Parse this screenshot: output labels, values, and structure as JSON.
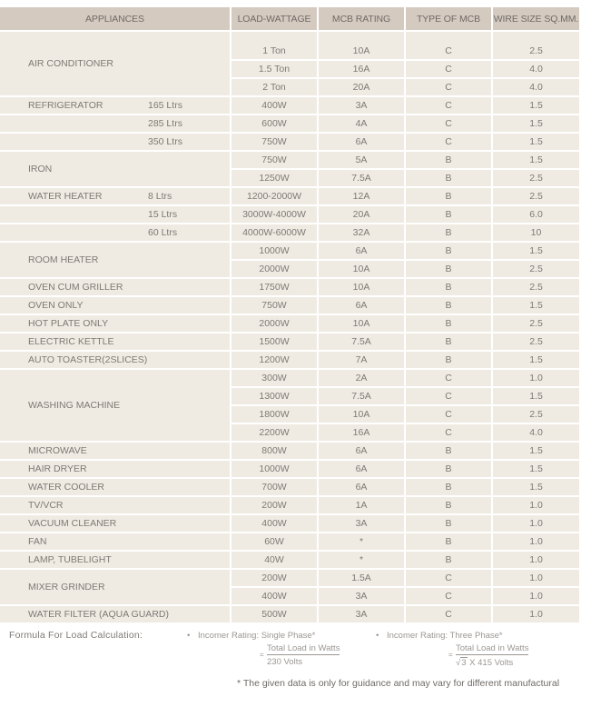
{
  "table": {
    "headers": {
      "appliances": "APPLIANCES",
      "load": "LOAD-WATTAGE",
      "mcb": "MCB RATING",
      "type": "TYPE OF MCB",
      "wire": "WIRE SIZE SQ.MM."
    },
    "rows": [
      {
        "appliance": "AIR CONDITIONER",
        "sub": "",
        "load": "1 Ton",
        "mcb": "10A",
        "type": "C",
        "wire": "2.5"
      },
      {
        "appliance": "",
        "sub": "",
        "load": "1.5 Ton",
        "mcb": "16A",
        "type": "C",
        "wire": "4.0"
      },
      {
        "appliance": "",
        "sub": "",
        "load": "2 Ton",
        "mcb": "20A",
        "type": "C",
        "wire": "4.0"
      },
      {
        "appliance": "REFRIGERATOR",
        "sub": "165 Ltrs",
        "load": "400W",
        "mcb": "3A",
        "type": "C",
        "wire": "1.5"
      },
      {
        "appliance": "",
        "sub": "285 Ltrs",
        "load": "600W",
        "mcb": "4A",
        "type": "C",
        "wire": "1.5"
      },
      {
        "appliance": "",
        "sub": "350 Ltrs",
        "load": "750W",
        "mcb": "6A",
        "type": "C",
        "wire": "1.5"
      },
      {
        "appliance": "IRON",
        "sub": "",
        "load": "750W",
        "mcb": "5A",
        "type": "B",
        "wire": "1.5"
      },
      {
        "appliance": "",
        "sub": "",
        "load": "1250W",
        "mcb": "7.5A",
        "type": "B",
        "wire": "2.5"
      },
      {
        "appliance": "WATER HEATER",
        "sub": "8 Ltrs",
        "load": "1200-2000W",
        "mcb": "12A",
        "type": "B",
        "wire": "2.5"
      },
      {
        "appliance": "",
        "sub": "15 Ltrs",
        "load": "3000W-4000W",
        "mcb": "20A",
        "type": "B",
        "wire": "6.0"
      },
      {
        "appliance": "",
        "sub": "60 Ltrs",
        "load": "4000W-6000W",
        "mcb": "32A",
        "type": "B",
        "wire": "10"
      },
      {
        "appliance": "ROOM  HEATER",
        "sub": "",
        "load": "1000W",
        "mcb": "6A",
        "type": "B",
        "wire": "1.5"
      },
      {
        "appliance": "",
        "sub": "",
        "load": "2000W",
        "mcb": "10A",
        "type": "B",
        "wire": "2.5"
      },
      {
        "appliance": "OVEN CUM GRILLER",
        "sub": "",
        "load": "1750W",
        "mcb": "10A",
        "type": "B",
        "wire": "2.5"
      },
      {
        "appliance": "OVEN ONLY",
        "sub": "",
        "load": "750W",
        "mcb": "6A",
        "type": "B",
        "wire": "1.5"
      },
      {
        "appliance": "HOT PLATE ONLY",
        "sub": "",
        "load": "2000W",
        "mcb": "10A",
        "type": "B",
        "wire": "2.5"
      },
      {
        "appliance": "ELECTRIC  KETTLE",
        "sub": "",
        "load": "1500W",
        "mcb": "7.5A",
        "type": "B",
        "wire": "2.5"
      },
      {
        "appliance": "AUTO  TOASTER(2SLICES)",
        "sub": "",
        "load": "1200W",
        "mcb": "7A",
        "type": "B",
        "wire": "1.5"
      },
      {
        "appliance": "WASHING  MACHINE",
        "sub": "",
        "load": "300W",
        "mcb": "2A",
        "type": "C",
        "wire": "1.0"
      },
      {
        "appliance": "",
        "sub": "",
        "load": "1300W",
        "mcb": "7.5A",
        "type": "C",
        "wire": "1.5"
      },
      {
        "appliance": "",
        "sub": "",
        "load": "1800W",
        "mcb": "10A",
        "type": "C",
        "wire": "2.5"
      },
      {
        "appliance": "",
        "sub": "",
        "load": "2200W",
        "mcb": "16A",
        "type": "C",
        "wire": "4.0"
      },
      {
        "appliance": "MICROWAVE",
        "sub": "",
        "load": "800W",
        "mcb": "6A",
        "type": "B",
        "wire": "1.5"
      },
      {
        "appliance": "HAIR DRYER",
        "sub": "",
        "load": "1000W",
        "mcb": "6A",
        "type": "B",
        "wire": "1.5"
      },
      {
        "appliance": "WATER COOLER",
        "sub": "",
        "load": "700W",
        "mcb": "6A",
        "type": "B",
        "wire": "1.5"
      },
      {
        "appliance": "TV/VCR",
        "sub": "",
        "load": "200W",
        "mcb": "1A",
        "type": "B",
        "wire": "1.0"
      },
      {
        "appliance": "VACUUM CLEANER",
        "sub": "",
        "load": "400W",
        "mcb": "3A",
        "type": "B",
        "wire": "1.0"
      },
      {
        "appliance": "FAN",
        "sub": "",
        "load": "60W",
        "mcb": "*",
        "type": "B",
        "wire": "1.0"
      },
      {
        "appliance": "LAMP, TUBELIGHT",
        "sub": "",
        "load": "40W",
        "mcb": "*",
        "type": "B",
        "wire": "1.0"
      },
      {
        "appliance": "MIXER GRINDER",
        "sub": "",
        "load": "200W",
        "mcb": "1.5A",
        "type": "C",
        "wire": "1.0"
      },
      {
        "appliance": "",
        "sub": "",
        "load": "400W",
        "mcb": "3A",
        "type": "C",
        "wire": "1.0"
      },
      {
        "appliance": "WATER FILTER (AQUA GUARD)",
        "sub": "",
        "load": "500W",
        "mcb": "3A",
        "type": "C",
        "wire": "1.0"
      }
    ]
  },
  "formula": {
    "label": "Formula For Load Calculation:",
    "single": {
      "bullet": "•",
      "title": "Incomer Rating: Single Phase*",
      "eq": "=",
      "numerator": "Total Load in Watts",
      "denominator": "230 Volts"
    },
    "three": {
      "bullet": "•",
      "title": "Incomer Rating: Three Phase*",
      "eq": "=",
      "numerator": "Total Load in Watts",
      "sqrt_symbol": "√",
      "sqrt_value": "3",
      "denominator_rest": " X 415 Volts"
    }
  },
  "note": "* The given data is only for guidance and may vary for different manufactural",
  "colors": {
    "header_bg": "#d5cac0",
    "row_bg": "#f0ebe2",
    "text": "#7d7975"
  }
}
